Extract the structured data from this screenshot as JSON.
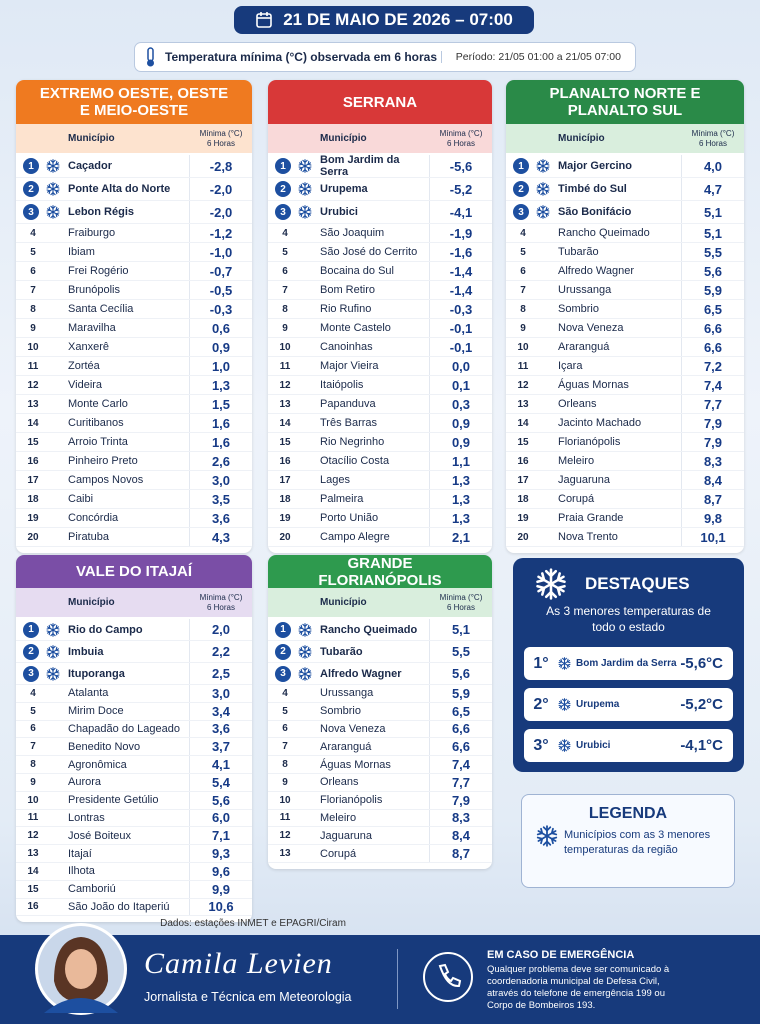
{
  "header": {
    "date": "21 DE MAIO DE 2026 – 07:00",
    "subtitle": "Temperatura mínima (°C) observada em 6 horas",
    "period": "Período: 21/05 01:00 a 21/05 07:00"
  },
  "table_header": {
    "municipio": "Município",
    "minima": "Mínima (°C)",
    "horas": "6 Horas"
  },
  "regions": [
    {
      "title": "EXTREMO OESTE, OESTE E MEIO-OESTE",
      "color": "#ef7a20",
      "tint": "#fde3cf",
      "rows": [
        [
          1,
          "Caçador",
          "-2,8"
        ],
        [
          2,
          "Ponte Alta do Norte",
          "-2,0"
        ],
        [
          3,
          "Lebon Régis",
          "-2,0"
        ],
        [
          4,
          "Fraiburgo",
          "-1,2"
        ],
        [
          5,
          "Ibiam",
          "-1,0"
        ],
        [
          6,
          "Frei Rogério",
          "-0,7"
        ],
        [
          7,
          "Brunópolis",
          "-0,5"
        ],
        [
          8,
          "Santa Cecília",
          "-0,3"
        ],
        [
          9,
          "Maravilha",
          "0,6"
        ],
        [
          10,
          "Xanxerê",
          "0,9"
        ],
        [
          11,
          "Zortéa",
          "1,0"
        ],
        [
          12,
          "Videira",
          "1,3"
        ],
        [
          13,
          "Monte Carlo",
          "1,5"
        ],
        [
          14,
          "Curitibanos",
          "1,6"
        ],
        [
          15,
          "Arroio Trinta",
          "1,6"
        ],
        [
          16,
          "Pinheiro Preto",
          "2,6"
        ],
        [
          17,
          "Campos Novos",
          "3,0"
        ],
        [
          18,
          "Caibi",
          "3,5"
        ],
        [
          19,
          "Concórdia",
          "3,6"
        ],
        [
          20,
          "Piratuba",
          "4,3"
        ]
      ]
    },
    {
      "title": "SERRANA",
      "color": "#d83838",
      "tint": "#f9d9d9",
      "rows": [
        [
          1,
          "Bom Jardim da Serra",
          "-5,6"
        ],
        [
          2,
          "Urupema",
          "-5,2"
        ],
        [
          3,
          "Urubici",
          "-4,1"
        ],
        [
          4,
          "São Joaquim",
          "-1,9"
        ],
        [
          5,
          "São José do Cerrito",
          "-1,6"
        ],
        [
          6,
          "Bocaina do Sul",
          "-1,4"
        ],
        [
          7,
          "Bom Retiro",
          "-1,4"
        ],
        [
          8,
          "Rio Rufino",
          "-0,3"
        ],
        [
          9,
          "Monte Castelo",
          "-0,1"
        ],
        [
          10,
          "Canoinhas",
          "-0,1"
        ],
        [
          11,
          "Major Vieira",
          "0,0"
        ],
        [
          12,
          "Itaiópolis",
          "0,1"
        ],
        [
          13,
          "Papanduva",
          "0,3"
        ],
        [
          14,
          "Três Barras",
          "0,9"
        ],
        [
          15,
          "Rio Negrinho",
          "0,9"
        ],
        [
          16,
          "Otacílio Costa",
          "1,1"
        ],
        [
          17,
          "Lages",
          "1,3"
        ],
        [
          18,
          "Palmeira",
          "1,3"
        ],
        [
          19,
          "Porto União",
          "1,3"
        ],
        [
          20,
          "Campo Alegre",
          "2,1"
        ]
      ]
    },
    {
      "title": "PLANALTO NORTE E PLANALTO SUL",
      "color": "#2a8a48",
      "tint": "#d9eedd",
      "rows": [
        [
          1,
          "Major Gercino",
          "4,0"
        ],
        [
          2,
          "Timbé do Sul",
          "4,7"
        ],
        [
          3,
          "São Bonifácio",
          "5,1"
        ],
        [
          4,
          "Rancho Queimado",
          "5,1"
        ],
        [
          5,
          "Tubarão",
          "5,5"
        ],
        [
          6,
          "Alfredo Wagner",
          "5,6"
        ],
        [
          7,
          "Urussanga",
          "5,9"
        ],
        [
          8,
          "Sombrio",
          "6,5"
        ],
        [
          9,
          "Nova Veneza",
          "6,6"
        ],
        [
          10,
          "Araranguá",
          "6,6"
        ],
        [
          11,
          "Içara",
          "7,2"
        ],
        [
          12,
          "Águas Mornas",
          "7,4"
        ],
        [
          13,
          "Orleans",
          "7,7"
        ],
        [
          14,
          "Jacinto Machado",
          "7,9"
        ],
        [
          15,
          "Florianópolis",
          "7,9"
        ],
        [
          16,
          "Meleiro",
          "8,3"
        ],
        [
          17,
          "Jaguaruna",
          "8,4"
        ],
        [
          18,
          "Corupá",
          "8,7"
        ],
        [
          19,
          "Praia Grande",
          "9,8"
        ],
        [
          20,
          "Nova Trento",
          "10,1"
        ]
      ]
    },
    {
      "title": "VALE DO ITAJAÍ",
      "color": "#7a4ea6",
      "tint": "#e6dcf1",
      "rows": [
        [
          1,
          "Rio do Campo",
          "2,0"
        ],
        [
          2,
          "Imbuia",
          "2,2"
        ],
        [
          3,
          "Ituporanga",
          "2,5"
        ],
        [
          4,
          "Atalanta",
          "3,0"
        ],
        [
          5,
          "Mirim Doce",
          "3,4"
        ],
        [
          6,
          "Chapadão do Lageado",
          "3,6"
        ],
        [
          7,
          "Benedito Novo",
          "3,7"
        ],
        [
          8,
          "Agronômica",
          "4,1"
        ],
        [
          9,
          "Aurora",
          "5,4"
        ],
        [
          10,
          "Presidente Getúlio",
          "5,6"
        ],
        [
          11,
          "Lontras",
          "6,0"
        ],
        [
          12,
          "José Boiteux",
          "7,1"
        ],
        [
          13,
          "Itajaí",
          "9,3"
        ],
        [
          14,
          "Ilhota",
          "9,6"
        ],
        [
          15,
          "Camboriú",
          "9,9"
        ],
        [
          16,
          "São João do Itaperiú",
          "10,6"
        ]
      ]
    },
    {
      "title": "GRANDE FLORIANÓPOLIS",
      "color": "#2e9a4e",
      "tint": "#d9eedd",
      "rows": [
        [
          1,
          "Rancho Queimado",
          "5,1"
        ],
        [
          2,
          "Tubarão",
          "5,5"
        ],
        [
          3,
          "Alfredo Wagner",
          "5,6"
        ],
        [
          4,
          "Urussanga",
          "5,9"
        ],
        [
          5,
          "Sombrio",
          "6,5"
        ],
        [
          6,
          "Nova Veneza",
          "6,6"
        ],
        [
          7,
          "Araranguá",
          "6,6"
        ],
        [
          8,
          "Águas Mornas",
          "7,4"
        ],
        [
          9,
          "Orleans",
          "7,7"
        ],
        [
          10,
          "Florianópolis",
          "7,9"
        ],
        [
          11,
          "Meleiro",
          "8,3"
        ],
        [
          12,
          "Jaguaruna",
          "8,4"
        ],
        [
          13,
          "Corupá",
          "8,7"
        ]
      ]
    }
  ],
  "highlights": {
    "title": "DESTAQUES",
    "subtitle": "As 3 menores temperaturas de todo o estado",
    "items": [
      {
        "rank": "1°",
        "name": "Bom Jardim da Serra",
        "value": "-5,6°C"
      },
      {
        "rank": "2°",
        "name": "Urupema",
        "value": "-5,2°C"
      },
      {
        "rank": "3°",
        "name": "Urubici",
        "value": "-4,1°C"
      }
    ]
  },
  "legend": {
    "title": "LEGENDA",
    "text": "Municípios com as 3 menores temperaturas da região"
  },
  "source": "Dados: estações INMET e EPAGRI/Ciram",
  "footer": {
    "name": "Camila Levien",
    "role": "Jornalista e Técnica em Meteorologia",
    "emergency_title": "EM CASO DE EMERGÊNCIA",
    "emergency_text": "Qualquer problema deve ser comunicado à coordenadoria municipal de Defesa Civil, através do telefone de emergência 199 ou Corpo de Bombeiros 193."
  }
}
